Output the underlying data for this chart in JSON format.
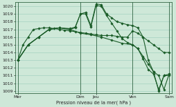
{
  "background_color": "#cee8d8",
  "grid_color": "#99ccbb",
  "line_color": "#1a5c28",
  "marker_color": "#1a5c28",
  "xlabel": "Pression niveau de la mer( hPa )",
  "ylim": [
    1009,
    1020.5
  ],
  "yticks": [
    1009,
    1010,
    1011,
    1012,
    1013,
    1014,
    1015,
    1016,
    1017,
    1018,
    1019,
    1020
  ],
  "xtick_labels": [
    "Mer",
    "Dim",
    "Jeu",
    "Ven",
    "Sam"
  ],
  "xtick_positions": [
    0,
    12,
    15,
    22,
    29
  ],
  "vlines": [
    0,
    12,
    15,
    22,
    29
  ],
  "s1_x": [
    0,
    1,
    2,
    3,
    4,
    5,
    6,
    7,
    8,
    9,
    10,
    11,
    12,
    13,
    14,
    15,
    16,
    17,
    18,
    19,
    20,
    21,
    22,
    23,
    24,
    25,
    26,
    27,
    28,
    29
  ],
  "s1_y": [
    1013,
    1015,
    1016,
    1017,
    1017.1,
    1017.2,
    1017.2,
    1017.1,
    1017.0,
    1016.9,
    1016.8,
    1016.7,
    1016.6,
    1016.5,
    1016.4,
    1016.3,
    1016.2,
    1016.2,
    1016.2,
    1016.1,
    1016.0,
    1016.0,
    1016.8,
    1016.5,
    1016.0,
    1015.5,
    1015.0,
    1014.5,
    1014.0,
    1014.0
  ],
  "s2_x": [
    0,
    2,
    4,
    6,
    8,
    10,
    11,
    12,
    13,
    14,
    15,
    16,
    17,
    18,
    19,
    20,
    21,
    22,
    23,
    24,
    25,
    26,
    27,
    28,
    29
  ],
  "s2_y": [
    1013,
    1015,
    1016,
    1017,
    1017.2,
    1017.1,
    1017.3,
    1019.0,
    1019.2,
    1017.5,
    1020.3,
    1020.2,
    1019.0,
    1018.5,
    1018.0,
    1017.8,
    1017.6,
    1017.5,
    1017.2,
    1016.0,
    1013.0,
    1011.5,
    1009.0,
    1011.0,
    1011.0
  ],
  "s3_x": [
    0,
    2,
    4,
    6,
    8,
    10,
    11,
    12,
    13,
    14,
    15,
    16,
    17,
    18,
    19,
    20,
    21,
    22,
    23,
    24,
    25,
    26,
    27,
    28,
    29
  ],
  "s3_y": [
    1013,
    1015,
    1016,
    1017,
    1017.2,
    1017.0,
    1017.2,
    1019.0,
    1019.0,
    1017.3,
    1020.1,
    1020.0,
    1018.8,
    1017.8,
    1016.8,
    1015.8,
    1015.3,
    1015.0,
    1014.5,
    1013.2,
    1011.8,
    1011.2,
    1009.2,
    1011.0,
    1011.2
  ],
  "s4_x": [
    0,
    2,
    4,
    6,
    8,
    10,
    12,
    14,
    16,
    18,
    20,
    22,
    23,
    24,
    25,
    26,
    27,
    28,
    29
  ],
  "s4_y": [
    1013,
    1015,
    1016.0,
    1017.0,
    1017.2,
    1017.0,
    1016.5,
    1016.3,
    1016.0,
    1015.6,
    1015.2,
    1015.0,
    1014.5,
    1013.5,
    1012.5,
    1011.5,
    1011.0,
    1009.2,
    1011.2
  ]
}
